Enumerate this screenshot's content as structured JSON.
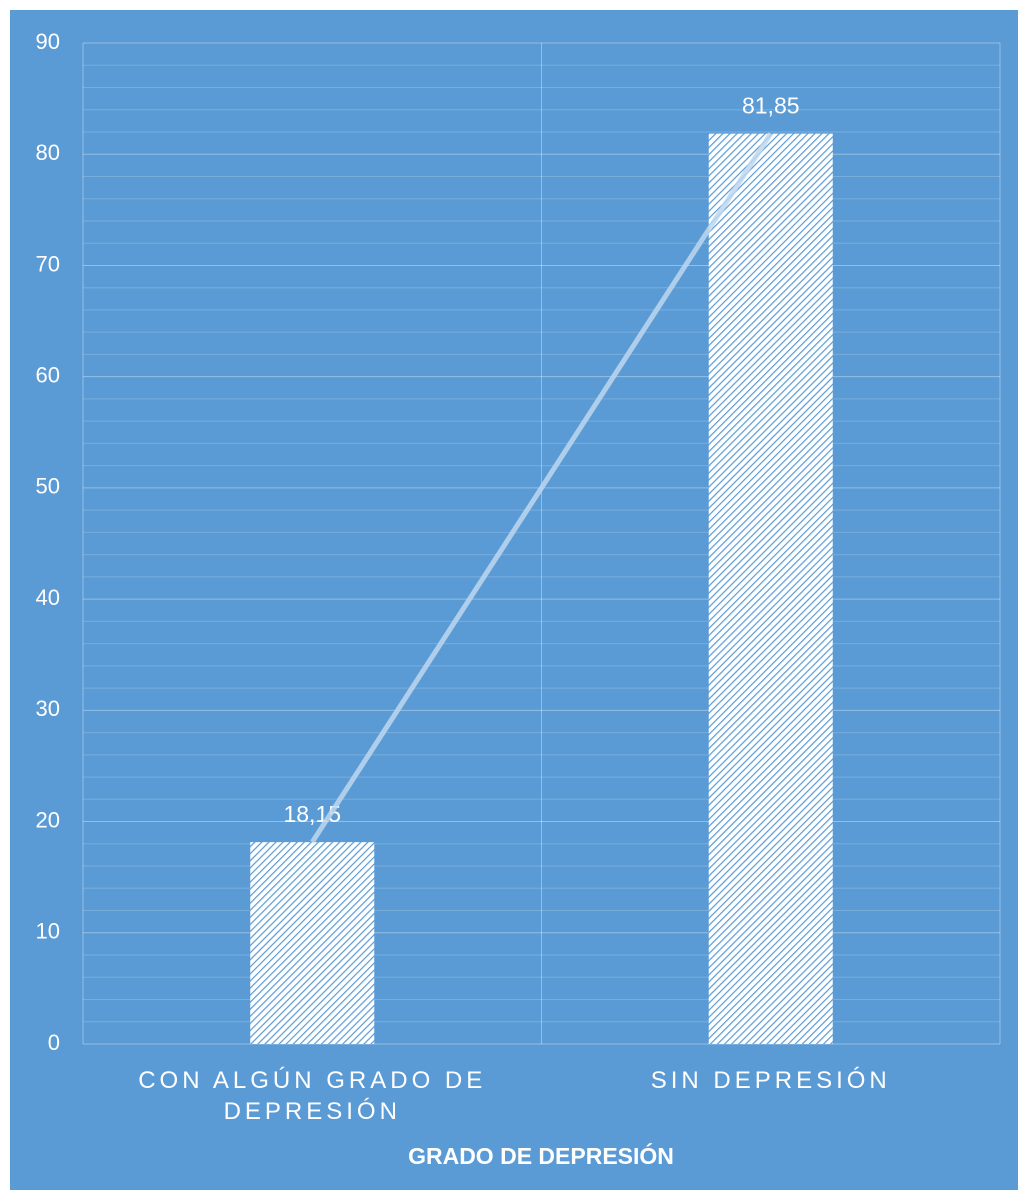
{
  "chart_data": {
    "type": "bar",
    "x_label": "GRADO DE DEPRESIÓN",
    "categories": [
      "CON ALGÚN GRADO DE DEPRESIÓN",
      "SIN DEPRESIÓN"
    ],
    "series": [
      {
        "type": "bar",
        "color": "#ffffff",
        "hatch_color": "#5b9bd5",
        "values": [
          18.15,
          81.85
        ],
        "value_labels": [
          "18,15",
          "81,85"
        ]
      },
      {
        "type": "line",
        "color": "#bdd7ee",
        "values": [
          18.15,
          81.85
        ]
      }
    ],
    "ylim": [
      0,
      90
    ],
    "yticks": [
      0,
      10,
      20,
      30,
      40,
      50,
      60,
      70,
      80,
      90
    ],
    "minor_yticks": [
      2,
      4,
      6,
      8,
      12,
      14,
      16,
      18,
      22,
      24,
      26,
      28,
      32,
      34,
      36,
      38,
      42,
      44,
      46,
      48,
      52,
      54,
      56,
      58,
      62,
      64,
      66,
      68,
      72,
      74,
      76,
      78,
      82,
      84,
      86,
      88
    ],
    "background": "#5b9bd5",
    "grid": true
  }
}
